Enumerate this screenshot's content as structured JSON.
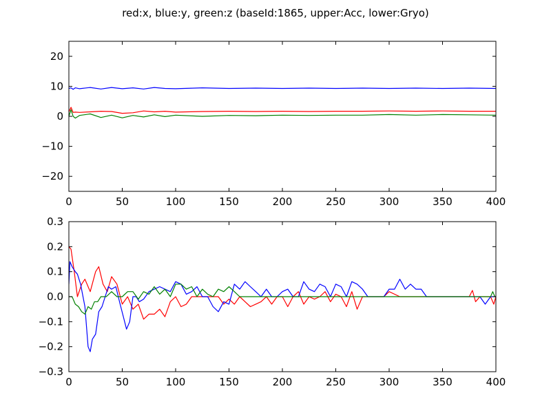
{
  "figure_title": "red:x, blue:y, green:z (baseId:1865, upper:Acc, lower:Gryo)",
  "colors": {
    "x": "#ff0000",
    "y": "#0000ff",
    "z": "#008000",
    "frame": "#000000"
  },
  "chart_data": [
    {
      "type": "line",
      "title": "",
      "xlabel": "",
      "ylabel": "",
      "xlim": [
        0,
        400
      ],
      "ylim": [
        -25,
        25
      ],
      "xticks": [
        0,
        50,
        100,
        150,
        200,
        250,
        300,
        350,
        400
      ],
      "yticks": [
        20,
        10,
        0,
        -10,
        -20
      ],
      "grid": false,
      "series": [
        {
          "color": "#ff0000",
          "x": [
            0,
            2,
            4,
            6,
            10,
            20,
            30,
            40,
            50,
            60,
            70,
            80,
            90,
            100,
            125,
            150,
            175,
            200,
            225,
            250,
            275,
            300,
            325,
            350,
            375,
            400
          ],
          "y": [
            1.5,
            3.0,
            1.3,
            1.4,
            1.3,
            1.5,
            1.7,
            1.6,
            1.0,
            1.2,
            1.8,
            1.5,
            1.7,
            1.4,
            1.6,
            1.7,
            1.6,
            1.7,
            1.6,
            1.7,
            1.7,
            1.8,
            1.7,
            1.8,
            1.7,
            1.7
          ]
        },
        {
          "color": "#0000ff",
          "x": [
            0,
            2,
            4,
            6,
            10,
            20,
            30,
            40,
            50,
            60,
            70,
            80,
            90,
            100,
            125,
            150,
            175,
            200,
            225,
            250,
            275,
            300,
            325,
            350,
            375,
            400
          ],
          "y": [
            9.3,
            9.5,
            9.0,
            9.5,
            9.2,
            9.6,
            9.1,
            9.6,
            9.2,
            9.5,
            9.1,
            9.6,
            9.3,
            9.2,
            9.5,
            9.3,
            9.4,
            9.3,
            9.4,
            9.3,
            9.4,
            9.3,
            9.4,
            9.3,
            9.4,
            9.3
          ]
        },
        {
          "color": "#008000",
          "x": [
            0,
            2,
            4,
            6,
            10,
            20,
            30,
            40,
            50,
            60,
            70,
            80,
            90,
            100,
            125,
            150,
            175,
            200,
            225,
            250,
            275,
            300,
            325,
            350,
            375,
            400
          ],
          "y": [
            0.0,
            2.2,
            0.0,
            -0.6,
            0.3,
            0.8,
            -0.4,
            0.4,
            -0.5,
            0.3,
            -0.2,
            0.5,
            -0.1,
            0.4,
            0.0,
            0.3,
            0.2,
            0.4,
            0.3,
            0.4,
            0.4,
            0.6,
            0.4,
            0.6,
            0.5,
            0.4
          ]
        }
      ]
    },
    {
      "type": "line",
      "title": "",
      "xlabel": "",
      "ylabel": "",
      "xlim": [
        0,
        400
      ],
      "ylim": [
        -0.3,
        0.3
      ],
      "xticks": [
        0,
        50,
        100,
        150,
        200,
        250,
        300,
        350,
        400
      ],
      "yticks": [
        0.3,
        0.2,
        0.1,
        0.0,
        -0.1,
        -0.2,
        -0.3
      ],
      "ytick_labels": [
        "0.3",
        "0.2",
        "0.1",
        "0.0",
        "−0.1",
        "−0.2",
        "−0.3"
      ],
      "grid": false,
      "series": [
        {
          "color": "#ff0000",
          "x": [
            0,
            2,
            5,
            8,
            12,
            15,
            20,
            25,
            28,
            32,
            36,
            40,
            45,
            50,
            55,
            60,
            65,
            70,
            75,
            80,
            85,
            90,
            95,
            100,
            105,
            110,
            115,
            120,
            125,
            130,
            135,
            140,
            145,
            150,
            155,
            160,
            165,
            170,
            175,
            180,
            185,
            190,
            195,
            200,
            205,
            210,
            215,
            220,
            225,
            230,
            235,
            240,
            245,
            250,
            255,
            260,
            265,
            270,
            275,
            280,
            285,
            290,
            295,
            300,
            310,
            320,
            330,
            340,
            350,
            360,
            370,
            375,
            378,
            381,
            385,
            390,
            395,
            398,
            400
          ],
          "y": [
            0.2,
            0.19,
            0.1,
            0.0,
            0.05,
            0.07,
            0.02,
            0.1,
            0.12,
            0.05,
            0.02,
            0.08,
            0.05,
            -0.03,
            0.0,
            -0.05,
            -0.03,
            -0.09,
            -0.07,
            -0.07,
            -0.05,
            -0.08,
            -0.02,
            0.0,
            -0.04,
            -0.03,
            0.0,
            0.0,
            0.0,
            0.0,
            0.0,
            0.0,
            -0.03,
            -0.01,
            -0.03,
            0.0,
            -0.02,
            -0.04,
            -0.03,
            -0.02,
            0.0,
            -0.03,
            0.0,
            0.0,
            -0.04,
            0.0,
            0.02,
            -0.03,
            0.0,
            -0.01,
            0.0,
            0.02,
            -0.02,
            0.01,
            0.0,
            -0.04,
            0.02,
            -0.05,
            0.0,
            0.0,
            0.0,
            0.0,
            0.0,
            0.02,
            0.0,
            0.0,
            0.0,
            0.0,
            0.0,
            0.0,
            0.0,
            0.0,
            0.025,
            -0.02,
            0.0,
            0.0,
            0.0,
            -0.03,
            0.0
          ]
        },
        {
          "color": "#0000ff",
          "x": [
            0,
            1,
            3,
            6,
            8,
            11,
            15,
            18,
            20,
            22,
            25,
            28,
            31,
            34,
            37,
            40,
            44,
            48,
            51,
            54,
            57,
            60,
            63,
            66,
            70,
            75,
            80,
            85,
            90,
            95,
            100,
            105,
            110,
            115,
            120,
            125,
            130,
            135,
            140,
            145,
            150,
            155,
            160,
            165,
            170,
            175,
            180,
            185,
            190,
            195,
            200,
            205,
            210,
            215,
            220,
            225,
            230,
            235,
            240,
            245,
            250,
            255,
            260,
            265,
            270,
            275,
            280,
            285,
            290,
            295,
            300,
            305,
            310,
            315,
            320,
            325,
            330,
            335,
            340,
            345,
            350,
            355,
            360,
            365,
            370,
            375,
            380,
            385,
            390,
            395,
            400
          ],
          "y": [
            0.05,
            0.14,
            0.12,
            0.1,
            0.09,
            0.05,
            -0.04,
            -0.2,
            -0.22,
            -0.17,
            -0.15,
            -0.06,
            -0.04,
            0.0,
            0.04,
            0.03,
            0.04,
            -0.03,
            -0.08,
            -0.13,
            -0.1,
            0.0,
            0.0,
            -0.02,
            -0.01,
            0.02,
            0.03,
            0.04,
            0.03,
            0.02,
            0.06,
            0.05,
            0.01,
            0.02,
            0.04,
            0.0,
            0.0,
            -0.04,
            -0.06,
            -0.02,
            -0.03,
            0.05,
            0.03,
            0.06,
            0.04,
            0.02,
            0.0,
            0.03,
            0.0,
            0.0,
            0.02,
            0.03,
            0.0,
            0.0,
            0.06,
            0.03,
            0.02,
            0.05,
            0.04,
            0.0,
            0.05,
            0.04,
            0.0,
            0.06,
            0.05,
            0.03,
            0.0,
            0.0,
            0.0,
            0.0,
            0.03,
            0.03,
            0.07,
            0.03,
            0.05,
            0.03,
            0.03,
            0.0,
            0.0,
            0.0,
            0.0,
            0.0,
            0.0,
            0.0,
            0.0,
            0.0,
            0.0,
            0.0,
            -0.03,
            0.0,
            0.0
          ]
        },
        {
          "color": "#008000",
          "x": [
            0,
            3,
            6,
            9,
            12,
            15,
            18,
            21,
            24,
            27,
            30,
            35,
            40,
            45,
            50,
            55,
            60,
            65,
            70,
            75,
            80,
            85,
            90,
            95,
            100,
            105,
            110,
            115,
            120,
            125,
            130,
            135,
            140,
            145,
            150,
            155,
            160,
            165,
            170,
            200,
            250,
            300,
            350,
            395,
            397,
            399,
            400
          ],
          "y": [
            0.0,
            0.0,
            -0.03,
            -0.04,
            -0.06,
            -0.07,
            -0.04,
            -0.05,
            -0.02,
            -0.02,
            0.0,
            0.0,
            0.02,
            0.0,
            0.0,
            0.02,
            0.02,
            -0.01,
            0.02,
            0.01,
            0.04,
            0.01,
            0.03,
            0.0,
            0.05,
            0.05,
            0.03,
            0.04,
            0.0,
            0.03,
            0.01,
            0.0,
            0.03,
            0.02,
            0.04,
            0.02,
            0.0,
            0.0,
            0.0,
            0.0,
            0.0,
            0.0,
            0.0,
            0.0,
            0.02,
            0.0,
            0.0
          ]
        }
      ]
    }
  ]
}
